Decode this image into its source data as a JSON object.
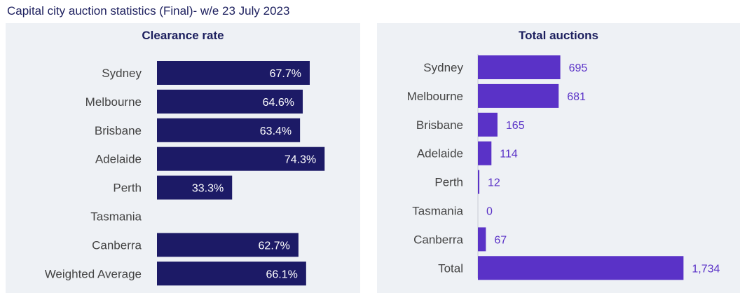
{
  "page": {
    "title": "Capital city auction statistics (Final)- w/e 23 July 2023"
  },
  "chart_data": [
    {
      "type": "bar",
      "orientation": "horizontal",
      "title": "Clearance rate",
      "categories": [
        "Sydney",
        "Melbourne",
        "Brisbane",
        "Adelaide",
        "Perth",
        "Tasmania",
        "Canberra",
        "Weighted Average"
      ],
      "values": [
        67.7,
        64.6,
        63.4,
        74.3,
        33.3,
        null,
        62.7,
        66.1
      ],
      "labels": [
        "67.7%",
        "64.6%",
        "63.4%",
        "74.3%",
        "33.3%",
        "",
        "62.7%",
        "66.1%"
      ],
      "unit": "%",
      "xlim": [
        0,
        100
      ],
      "bar_color": "#1c1a66",
      "label_color": "#ffffff",
      "label_position": "inside-end",
      "grid": false
    },
    {
      "type": "bar",
      "orientation": "horizontal",
      "title": "Total auctions",
      "categories": [
        "Sydney",
        "Melbourne",
        "Brisbane",
        "Adelaide",
        "Perth",
        "Tasmania",
        "Canberra",
        "Total"
      ],
      "values": [
        695,
        681,
        165,
        114,
        12,
        0,
        67,
        1734
      ],
      "labels": [
        "695",
        "681",
        "165",
        "114",
        "12",
        "0",
        "67",
        "1,734"
      ],
      "xlim": [
        0,
        1850
      ],
      "bar_color": "#5a32c7",
      "label_color": "#5a32c7",
      "label_position": "outside-end",
      "grid": false
    }
  ]
}
